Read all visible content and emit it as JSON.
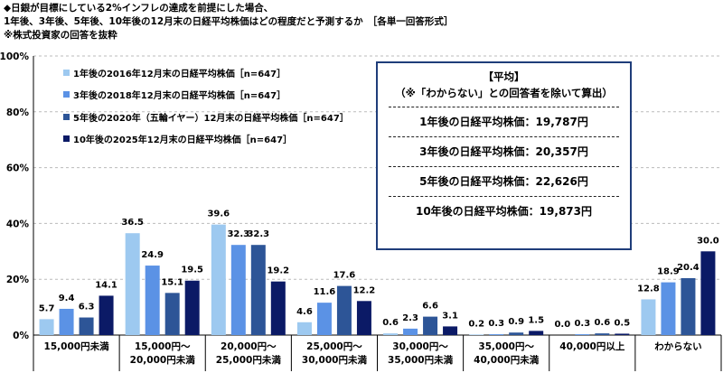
{
  "header": {
    "line1": "◆日銀が目標にしている2%インフレの達成を前提にした場合、",
    "line2": "1年後、3年後、5年後、10年後の12月末の日経平均株価はどの程度だと予測するか　［各単一回答形式］",
    "line3": "※株式投資家の回答を抜粋"
  },
  "average_box": {
    "title": "【平均】",
    "subtitle": "（※「わからない」との回答者を除いて算出）",
    "rows": [
      {
        "text": "1年後の日経平均株価：19,787円"
      },
      {
        "text": "3年後の日経平均株価：20,357円"
      },
      {
        "text": "5年後の日経平均株価：22,626円"
      },
      {
        "text": "10年後の日経平均株価：19,873円"
      }
    ]
  },
  "chart_data": {
    "type": "bar",
    "y_ticks": [
      "0%",
      "20%",
      "40%",
      "60%",
      "80%",
      "100%"
    ],
    "ylim": [
      0,
      100
    ],
    "categories": [
      [
        "15,000円未満"
      ],
      [
        "15,000円～",
        "20,000円未満"
      ],
      [
        "20,000円～",
        "25,000円未満"
      ],
      [
        "25,000円～",
        "30,000円未満"
      ],
      [
        "30,000円～",
        "35,000円未満"
      ],
      [
        "35,000円～",
        "40,000円未満"
      ],
      [
        "40,000円以上"
      ],
      [
        "わからない"
      ]
    ],
    "series": [
      {
        "name": "1年後の2016年12月末の日経平均株価［n=647］",
        "color": "#9dc9f0",
        "values": [
          5.7,
          36.5,
          39.6,
          4.6,
          0.6,
          0.2,
          0.0,
          12.8
        ]
      },
      {
        "name": "3年後の2018年12月末の日経平均株価［n=647］",
        "color": "#5b92e5",
        "values": [
          9.4,
          24.9,
          32.3,
          11.6,
          2.3,
          0.3,
          0.3,
          18.9
        ]
      },
      {
        "name": "5年後の2020年（五輪イヤー）12月末の日経平均株価［n=647］",
        "color": "#2d5597",
        "values": [
          6.3,
          15.1,
          32.3,
          17.6,
          6.6,
          0.9,
          0.6,
          20.4
        ]
      },
      {
        "name": "10年後の2025年12月末の日経平均株価［n=647］",
        "color": "#0b1a66",
        "values": [
          14.1,
          19.5,
          19.2,
          12.2,
          3.1,
          1.5,
          0.5,
          30.0
        ]
      }
    ]
  }
}
